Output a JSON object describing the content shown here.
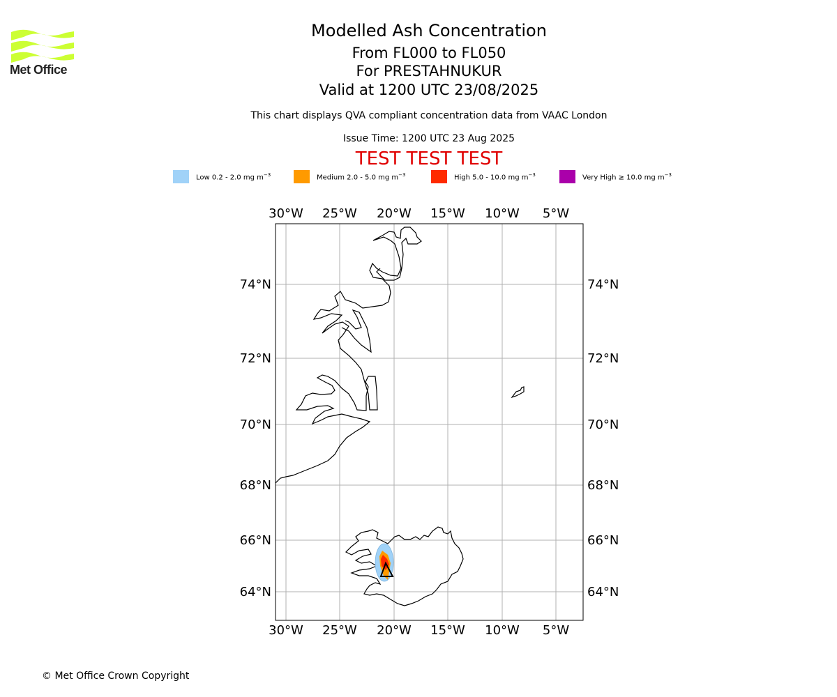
{
  "logo": {
    "text": "Met Office",
    "color": "#ccff33"
  },
  "header": {
    "title": "Modelled Ash Concentration",
    "levels": "From FL000 to FL050",
    "volcano": "For PRESTAHNUKUR",
    "valid": "Valid at 1200 UTC 23/08/2025",
    "qva_note": "This chart displays QVA compliant concentration data from VAAC London",
    "issue_time": "Issue Time: 1200 UTC 23 Aug 2025",
    "test_banner": "TEST TEST TEST"
  },
  "legend": [
    {
      "label": "Low 0.2 - 2.0 mg m",
      "sup": "−3",
      "color": "#a0d2f8"
    },
    {
      "label": "Medium 2.0 - 5.0 mg m",
      "sup": "−3",
      "color": "#ff9a00"
    },
    {
      "label": "High 5.0 - 10.0 mg m",
      "sup": "−3",
      "color": "#ff2a00"
    },
    {
      "label": "Very High  ≥  10.0 mg m",
      "sup": "−3",
      "color": "#aa00aa"
    }
  ],
  "map": {
    "lon_labels": [
      "30°W",
      "25°W",
      "20°W",
      "15°W",
      "10°W",
      "5°W"
    ],
    "lat_labels": [
      "74°N",
      "72°N",
      "70°N",
      "68°N",
      "66°N",
      "64°N"
    ],
    "volcano_marker": "volcano-triangle"
  },
  "footer": {
    "copyright": "© Met Office Crown Copyright"
  }
}
